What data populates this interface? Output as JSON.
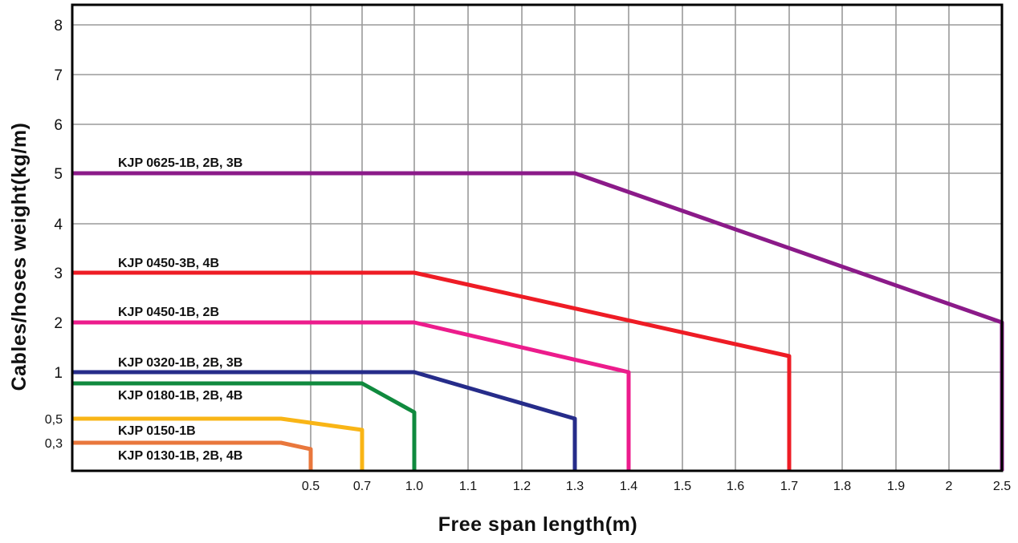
{
  "chart_data": {
    "type": "line",
    "title": "",
    "xlabel": "Free span length(m)",
    "ylabel": "Cables/hoses weight(kg/m)",
    "grid": true,
    "x_categories": [
      "0.5",
      "0.7",
      "1.0",
      "1.1",
      "1.2",
      "1.3",
      "1.4",
      "1.5",
      "1.6",
      "1.7",
      "1.8",
      "1.9",
      "2",
      "2.5"
    ],
    "y_ticks": [
      "0,3",
      "0,5",
      "1",
      "2",
      "3",
      "4",
      "5",
      "6",
      "7",
      "8"
    ],
    "series": [
      {
        "name": "KJP 0625-1B, 2B, 3B",
        "color": "#8b1a89",
        "x": [
          "0",
          "1.3",
          "2.5",
          "2.5"
        ],
        "y": [
          5,
          5,
          2,
          0
        ]
      },
      {
        "name": "KJP 0450-3B, 4B",
        "color": "#ee1c25",
        "x": [
          "0",
          "1.0",
          "1.7",
          "1.7"
        ],
        "y": [
          3,
          3,
          1.3,
          0
        ]
      },
      {
        "name": "KJP 0450-1B, 2B",
        "color": "#ec1c8c",
        "x": [
          "0",
          "1.0",
          "1.4",
          "1.4"
        ],
        "y": [
          2,
          2,
          1,
          0
        ]
      },
      {
        "name": "KJP 0320-1B, 2B, 3B",
        "color": "#262c8a",
        "x": [
          "0",
          "1.0",
          "1.3",
          "1.3"
        ],
        "y": [
          1,
          1,
          0.5,
          0
        ]
      },
      {
        "name": "KJP 0180-1B, 2B, 4B",
        "color": "#108a3e",
        "x": [
          "0",
          "0.7",
          "1.0",
          "1.0"
        ],
        "y": [
          0.8,
          0.8,
          0.6,
          0
        ]
      },
      {
        "name": "KJP 0150-1B",
        "color": "#f9b516",
        "x": [
          "0",
          "0.4",
          "0.7",
          "0.7"
        ],
        "y": [
          0.5,
          0.5,
          0.4,
          0
        ]
      },
      {
        "name": "KJP 0130-1B, 2B, 4B",
        "color": "#e9773c",
        "x": [
          "0",
          "0.4",
          "0.5",
          "0.5"
        ],
        "y": [
          0.3,
          0.3,
          0.25,
          0
        ]
      }
    ]
  }
}
